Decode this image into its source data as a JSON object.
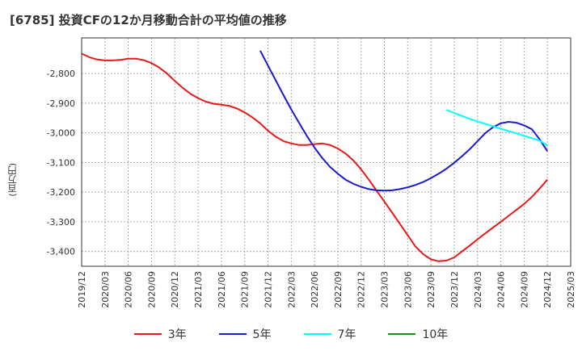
{
  "title": "[6785]  投資CFの12か月移動合計の平均値の推移",
  "chart_data": {
    "type": "line",
    "title": "[6785]  投資CFの12か月移動合計の平均値の推移",
    "xlabel": "",
    "ylabel": "(百万円)",
    "ylim": [
      -3450,
      -2680
    ],
    "yticks": [
      -2800,
      -2900,
      -3000,
      -3100,
      -3200,
      -3300,
      -3400
    ],
    "ytick_labels": [
      "-2,800",
      "-2,900",
      "-3,000",
      "-3,100",
      "-3,200",
      "-3,300",
      "-3,400"
    ],
    "xlim": [
      "2019/12",
      "2025/03"
    ],
    "xtick_labels": [
      "2019/12",
      "2020/03",
      "2020/06",
      "2020/09",
      "2020/12",
      "2021/03",
      "2021/06",
      "2021/09",
      "2021/12",
      "2022/03",
      "2022/06",
      "2022/09",
      "2022/12",
      "2023/03",
      "2023/06",
      "2023/09",
      "2023/12",
      "2024/03",
      "2024/06",
      "2024/09",
      "2024/12",
      "2025/03"
    ],
    "grid": true,
    "legend_position": "bottom",
    "series": [
      {
        "name": "3年",
        "color": "#e8191a",
        "x": [
          "2019/12",
          "2020/01",
          "2020/02",
          "2020/03",
          "2020/04",
          "2020/05",
          "2020/06",
          "2020/07",
          "2020/08",
          "2020/09",
          "2020/10",
          "2020/11",
          "2020/12",
          "2021/01",
          "2021/02",
          "2021/03",
          "2021/04",
          "2021/05",
          "2021/06",
          "2021/07",
          "2021/08",
          "2021/09",
          "2021/10",
          "2021/11",
          "2021/12",
          "2022/01",
          "2022/02",
          "2022/03",
          "2022/04",
          "2022/05",
          "2022/06",
          "2022/07",
          "2022/08",
          "2022/09",
          "2022/10",
          "2022/11",
          "2022/12",
          "2023/01",
          "2023/02",
          "2023/03",
          "2023/04",
          "2023/05",
          "2023/06",
          "2023/07",
          "2023/08",
          "2023/09",
          "2023/10",
          "2023/11",
          "2023/12",
          "2024/01",
          "2024/02",
          "2024/03",
          "2024/04",
          "2024/05",
          "2024/06",
          "2024/07",
          "2024/08",
          "2024/09",
          "2024/10",
          "2024/11",
          "2024/12"
        ],
        "values": [
          -2733,
          -2745,
          -2753,
          -2756,
          -2756,
          -2754,
          -2750,
          -2750,
          -2755,
          -2765,
          -2780,
          -2800,
          -2825,
          -2848,
          -2868,
          -2883,
          -2895,
          -2902,
          -2905,
          -2909,
          -2918,
          -2931,
          -2948,
          -2968,
          -2993,
          -3013,
          -3028,
          -3036,
          -3041,
          -3041,
          -3038,
          -3036,
          -3041,
          -3053,
          -3070,
          -3093,
          -3123,
          -3158,
          -3195,
          -3232,
          -3269,
          -3307,
          -3345,
          -3383,
          -3409,
          -3427,
          -3433,
          -3431,
          -3420,
          -3400,
          -3380,
          -3359,
          -3339,
          -3319,
          -3300,
          -3280,
          -3260,
          -3240,
          -3216,
          -3188,
          -3158
        ]
      },
      {
        "name": "5年",
        "color": "#1a1acc",
        "x": [
          "2021/11",
          "2021/12",
          "2022/01",
          "2022/02",
          "2022/03",
          "2022/04",
          "2022/05",
          "2022/06",
          "2022/07",
          "2022/08",
          "2022/09",
          "2022/10",
          "2022/11",
          "2022/12",
          "2023/01",
          "2023/02",
          "2023/03",
          "2023/04",
          "2023/05",
          "2023/06",
          "2023/07",
          "2023/08",
          "2023/09",
          "2023/10",
          "2023/11",
          "2023/12",
          "2024/01",
          "2024/02",
          "2024/03",
          "2024/04",
          "2024/05",
          "2024/06",
          "2024/07",
          "2024/08",
          "2024/09",
          "2024/10",
          "2024/11",
          "2024/12"
        ],
        "values": [
          -2723,
          -2773,
          -2823,
          -2873,
          -2921,
          -2966,
          -3010,
          -3050,
          -3085,
          -3115,
          -3138,
          -3158,
          -3172,
          -3182,
          -3190,
          -3194,
          -3195,
          -3194,
          -3190,
          -3184,
          -3176,
          -3166,
          -3153,
          -3138,
          -3121,
          -3101,
          -3079,
          -3055,
          -3028,
          -3001,
          -2981,
          -2968,
          -2963,
          -2966,
          -2975,
          -2988,
          -3022,
          -3062
        ]
      },
      {
        "name": "7年",
        "color": "#00ffff",
        "x": [
          "2023/11",
          "2023/12",
          "2024/01",
          "2024/02",
          "2024/03",
          "2024/04",
          "2024/05",
          "2024/06",
          "2024/07",
          "2024/08",
          "2024/09",
          "2024/10",
          "2024/11",
          "2024/12"
        ],
        "values": [
          -2923,
          -2933,
          -2943,
          -2953,
          -2962,
          -2970,
          -2978,
          -2986,
          -2994,
          -3002,
          -3010,
          -3018,
          -3026,
          -3043
        ]
      },
      {
        "name": "10年",
        "color": "#1a8c1a",
        "x": [],
        "values": []
      }
    ]
  }
}
